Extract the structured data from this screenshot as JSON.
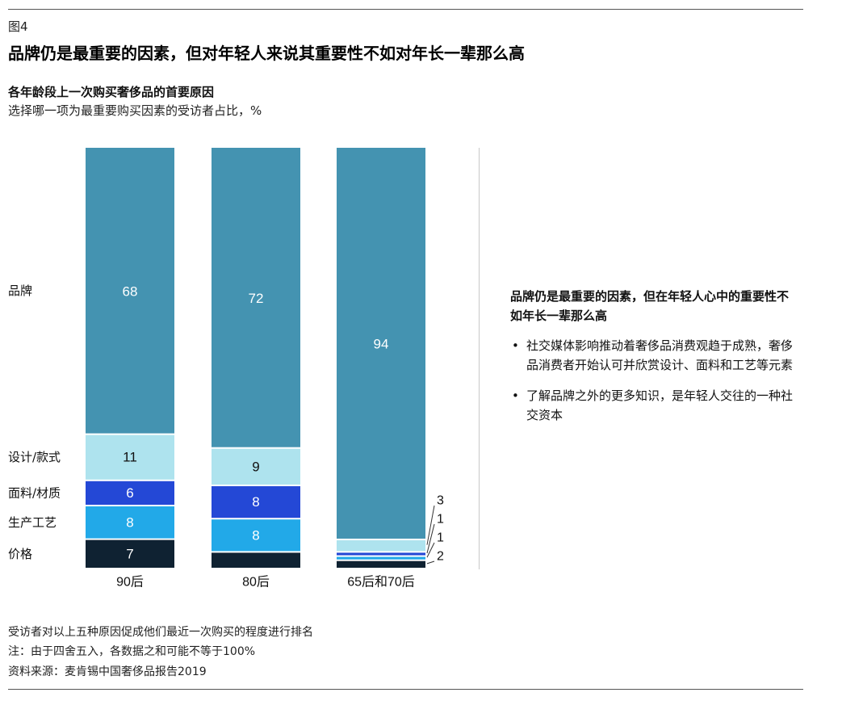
{
  "figure_label": "图4",
  "main_title": "品牌仍是最重要的因素，但对年轻人来说其重要性不如对年长一辈那么高",
  "chart_data": {
    "type": "bar",
    "stacked": true,
    "title": "各年龄段上一次购买奢侈品的首要原因",
    "subtitle": "选择哪一项为最重要购买因素的受访者占比，%",
    "categories": [
      "90后",
      "80后",
      "65后和70后"
    ],
    "series": [
      {
        "name": "价格",
        "color": "#0f2232",
        "values": [
          7,
          4,
          2
        ]
      },
      {
        "name": "生产工艺",
        "color": "#22a9e8",
        "values": [
          8,
          8,
          1
        ]
      },
      {
        "name": "面料/材质",
        "color": "#2448d6",
        "values": [
          6,
          8,
          1
        ]
      },
      {
        "name": "设计/款式",
        "color": "#aee3ee",
        "values": [
          11,
          9,
          3
        ]
      },
      {
        "name": "品牌",
        "color": "#4493b1",
        "values": [
          68,
          72,
          94
        ]
      }
    ],
    "grid": false,
    "legend": "left"
  },
  "sidebar": {
    "headline": "品牌仍是最重要的因素，但在年轻人心中的重要性不如年长一辈那么高",
    "bullets": [
      "社交媒体影响推动着奢侈品消费观趋于成熟，奢侈品消费者开始认可并欣赏设计、面料和工艺等元素",
      "了解品牌之外的更多知识，是年轻人交往的一种社交资本"
    ],
    "bullet_symbol": "•"
  },
  "footnotes": {
    "respondents": "受访者对以上五种原因促成他们最近一次购买的程度进行排名",
    "note": "注：由于四舍五入，各数据之和可能不等于100%",
    "source": "资料来源：麦肯锡中国奢侈品报告2019"
  }
}
